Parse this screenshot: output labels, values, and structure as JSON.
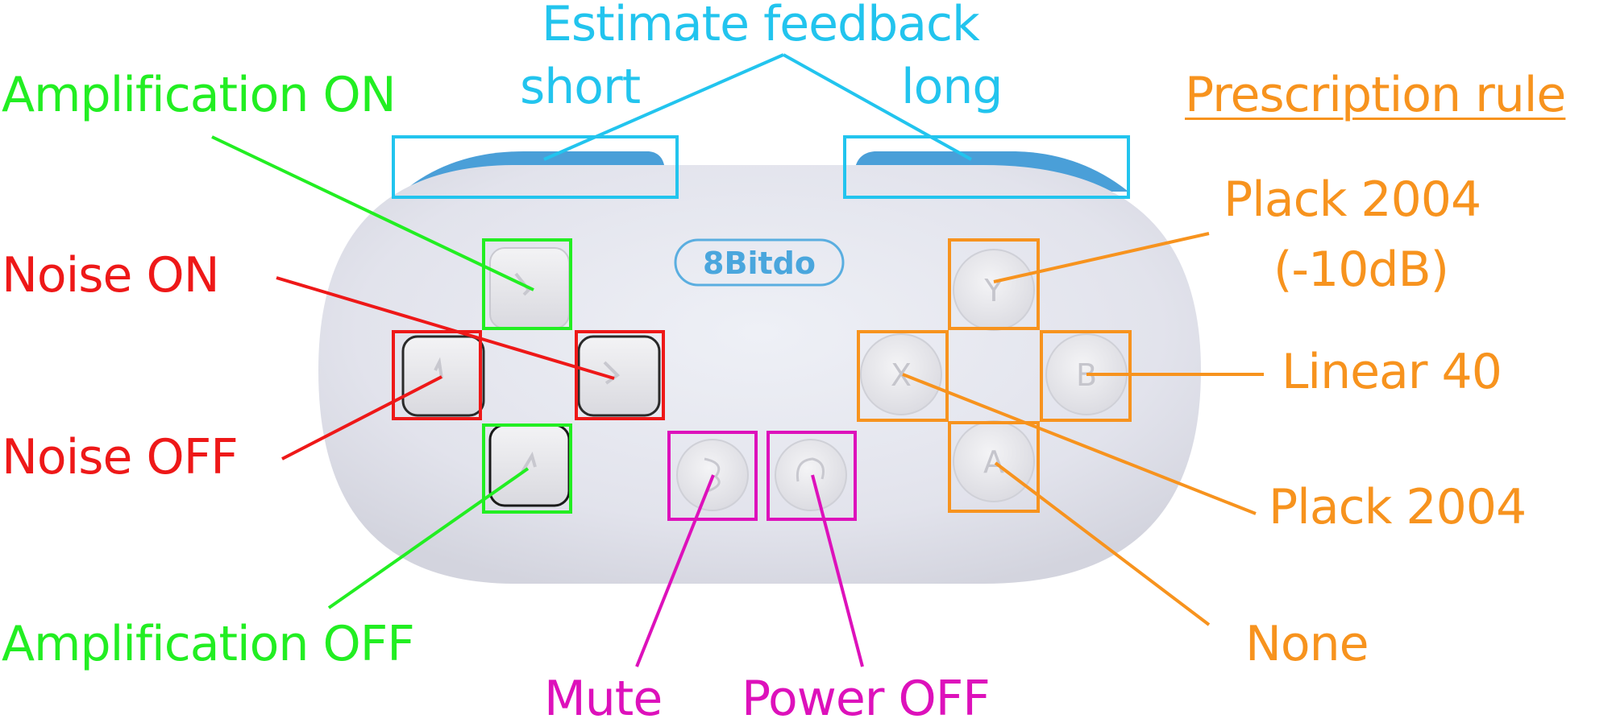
{
  "controller": {
    "logo": "8Bitdo",
    "face_buttons": {
      "top": "Y",
      "left": "X",
      "right": "B",
      "bottom": "A"
    }
  },
  "labels": {
    "estimate_feedback": "Estimate feedback",
    "short": "short",
    "long": "long",
    "prescription_rule": "Prescription rule",
    "amplification_on": "Amplification ON",
    "noise_on": "Noise ON",
    "noise_off": "Noise OFF",
    "amplification_off": "Amplification OFF",
    "plack_2004_10db_line1": "Plack 2004",
    "plack_2004_10db_line2": "(-10dB)",
    "linear_40": "Linear 40",
    "plack_2004": "Plack 2004",
    "none": "None",
    "mute": "Mute",
    "power_off": "Power OFF"
  },
  "colors": {
    "feedback": "#22c4ee",
    "amplification": "#22ee22",
    "noise": "#ee1818",
    "prescription": "#f7931e",
    "system": "#dd11bb",
    "controller_body": "#e4e5ee",
    "controller_shoulder": "#4a9fd8"
  }
}
